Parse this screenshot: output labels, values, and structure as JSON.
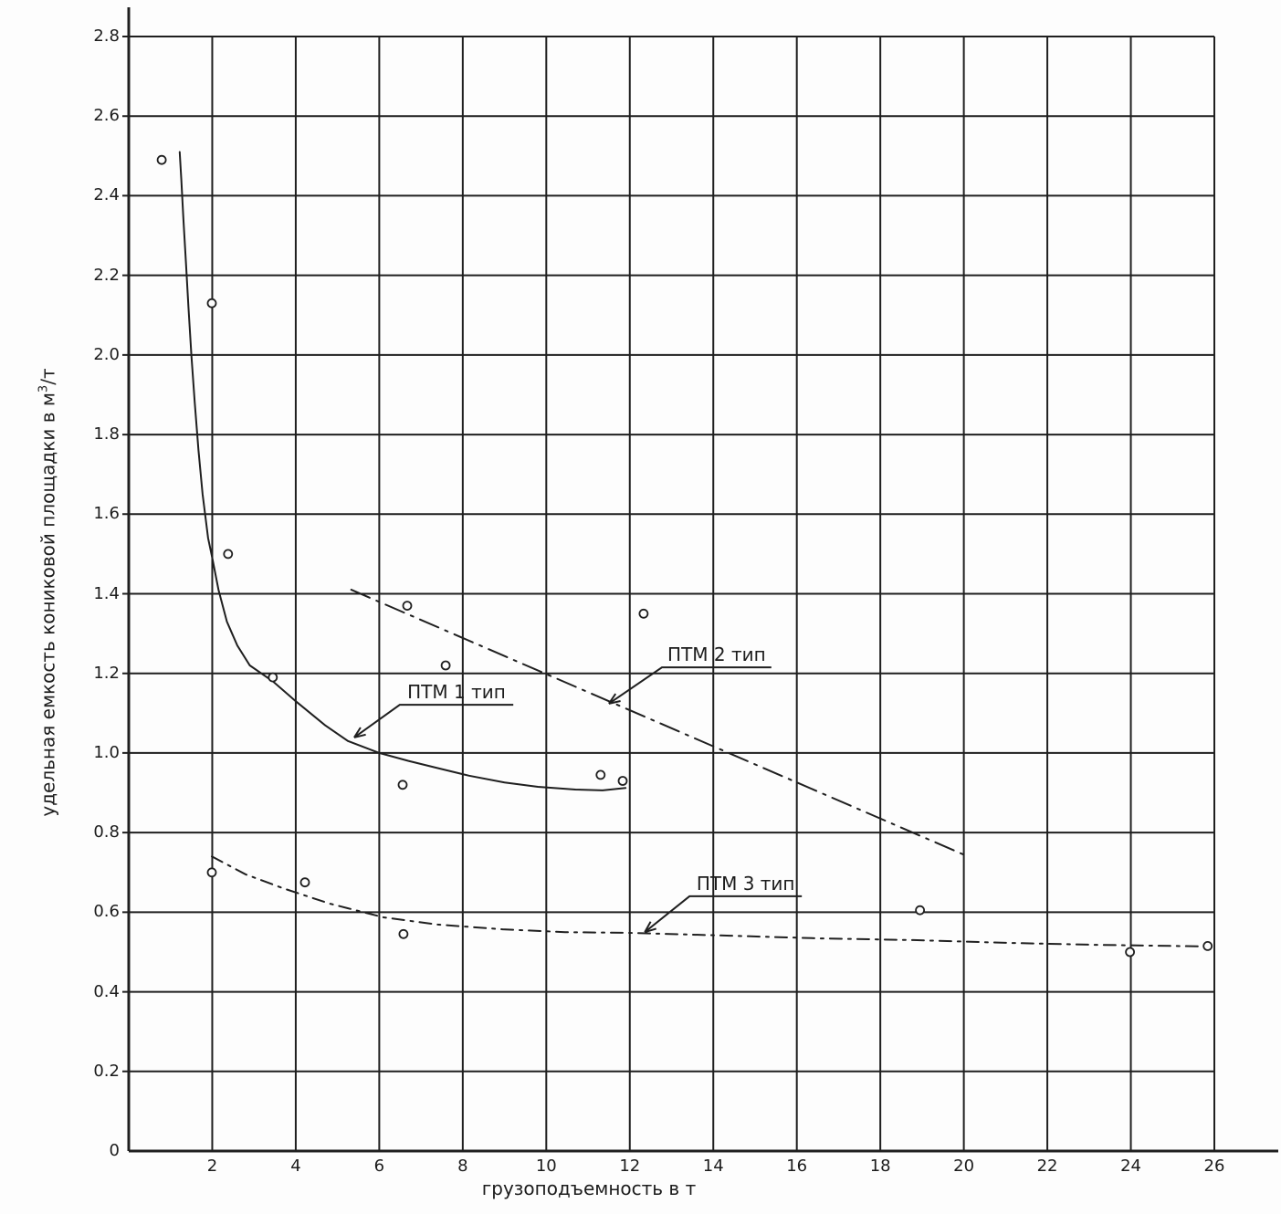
{
  "figure": {
    "background": "#fdfdfd",
    "ink": "#1f1f1f"
  },
  "axes": {
    "x_title": "грузоподъемность в т",
    "y_title_main": "удельная емкость кониковой площадки в м",
    "y_title_sup": "3",
    "y_title_tail": "/т"
  },
  "chart_data": {
    "type": "scatter",
    "title": "",
    "xlabel": "грузоподъемность в т",
    "ylabel": "удельная емкость кониковой площадки в м3/т",
    "xlim": [
      0,
      26
    ],
    "ylim": [
      0,
      2.8
    ],
    "x_ticks": [
      2,
      4,
      6,
      8,
      10,
      12,
      14,
      16,
      18,
      20,
      22,
      24,
      26
    ],
    "y_ticks": [
      "0",
      "0.2",
      "0.4",
      "0.6",
      "0.8",
      "1.0",
      "1.2",
      "1.4",
      "1.6",
      "1.8",
      "2.0",
      "2.2",
      "2.4",
      "2.6",
      "2.8"
    ],
    "grid": true,
    "legend_position": "inline-callouts",
    "series": [
      {
        "name": "ПТМ 1 тип",
        "line_style": "solid",
        "points": [
          [
            0.79,
            2.49
          ],
          [
            1.99,
            2.13
          ],
          [
            2.38,
            1.5
          ],
          [
            3.45,
            1.19
          ],
          [
            6.56,
            0.92
          ],
          [
            11.3,
            0.945
          ],
          [
            11.83,
            0.93
          ]
        ],
        "curve": [
          [
            1.22,
            2.51
          ],
          [
            1.26,
            2.44
          ],
          [
            1.31,
            2.34
          ],
          [
            1.37,
            2.23
          ],
          [
            1.43,
            2.12
          ],
          [
            1.5,
            2.0
          ],
          [
            1.58,
            1.88
          ],
          [
            1.67,
            1.76
          ],
          [
            1.77,
            1.65
          ],
          [
            1.9,
            1.54
          ],
          [
            2.0,
            1.49
          ],
          [
            2.15,
            1.41
          ],
          [
            2.35,
            1.33
          ],
          [
            2.6,
            1.27
          ],
          [
            2.9,
            1.22
          ],
          [
            3.45,
            1.18
          ],
          [
            4.0,
            1.13
          ],
          [
            4.7,
            1.07
          ],
          [
            5.25,
            1.03
          ],
          [
            6.0,
            1.0
          ],
          [
            6.7,
            0.98
          ],
          [
            7.4,
            0.962
          ],
          [
            8.15,
            0.943
          ],
          [
            9.0,
            0.926
          ],
          [
            9.8,
            0.915
          ],
          [
            10.7,
            0.908
          ],
          [
            11.35,
            0.906
          ],
          [
            11.9,
            0.912
          ]
        ]
      },
      {
        "name": "ПТМ 2 тип",
        "line_style": "dashdot",
        "points": [
          [
            6.67,
            1.37
          ],
          [
            7.59,
            1.22
          ],
          [
            12.33,
            1.35
          ]
        ],
        "curve": [
          [
            5.33,
            1.41
          ],
          [
            20.1,
            0.74
          ]
        ]
      },
      {
        "name": "ПТМ 3 тип",
        "line_style": "dashdot-fine",
        "points": [
          [
            1.99,
            0.7
          ],
          [
            4.22,
            0.675
          ],
          [
            6.58,
            0.545
          ],
          [
            18.95,
            0.605
          ],
          [
            23.98,
            0.5
          ],
          [
            25.84,
            0.515
          ]
        ],
        "curve": [
          [
            1.99,
            0.74
          ],
          [
            2.8,
            0.695
          ],
          [
            3.7,
            0.66
          ],
          [
            4.8,
            0.622
          ],
          [
            6.1,
            0.587
          ],
          [
            7.4,
            0.569
          ],
          [
            8.95,
            0.557
          ],
          [
            10.45,
            0.55
          ],
          [
            12.0,
            0.548
          ],
          [
            14.4,
            0.541
          ],
          [
            16.6,
            0.534
          ],
          [
            18.8,
            0.53
          ],
          [
            21.0,
            0.523
          ],
          [
            23.15,
            0.518
          ],
          [
            25.84,
            0.514
          ]
        ]
      }
    ],
    "annotations": [
      {
        "series": 0,
        "underline_x1": 6.49,
        "underline_x2": 9.21,
        "underline_y": 1.121,
        "tip_x": 5.4,
        "tip_y": 1.039
      },
      {
        "series": 1,
        "underline_x1": 12.77,
        "underline_x2": 15.39,
        "underline_y": 1.215,
        "tip_x": 11.5,
        "tip_y": 1.124
      },
      {
        "series": 2,
        "underline_x1": 13.43,
        "underline_x2": 16.12,
        "underline_y": 0.64,
        "tip_x": 12.36,
        "tip_y": 0.55
      }
    ]
  }
}
